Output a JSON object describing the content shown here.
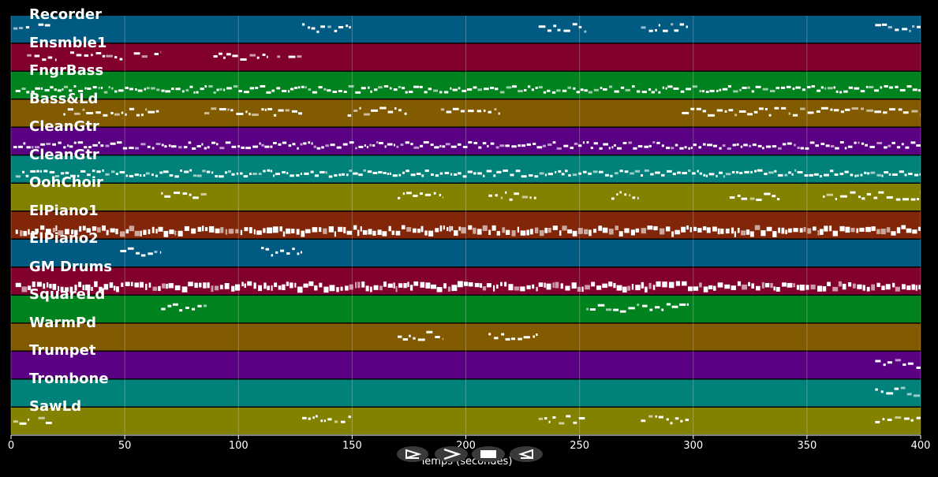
{
  "timeline": {
    "axis_label": "Temps (secondes)",
    "x_range": [
      0,
      400
    ],
    "ticks": [
      "0",
      "50",
      "100",
      "150",
      "200",
      "250",
      "300",
      "350",
      "400"
    ]
  },
  "tracks": [
    {
      "name": "Recorder",
      "color": "#005a82"
    },
    {
      "name": "Ensmble1",
      "color": "#82002e"
    },
    {
      "name": "FngrBass",
      "color": "#00821e"
    },
    {
      "name": "Bass&Ld",
      "color": "#825a00"
    },
    {
      "name": "CleanGtr",
      "color": "#5a0082"
    },
    {
      "name": "CleanGtr",
      "color": "#00827a"
    },
    {
      "name": "OohChoir",
      "color": "#828200"
    },
    {
      "name": "ElPiano1",
      "color": "#82260a"
    },
    {
      "name": "ElPiano2",
      "color": "#005a82"
    },
    {
      "name": "GM Drums",
      "color": "#82002e"
    },
    {
      "name": "SquareLd",
      "color": "#00821e"
    },
    {
      "name": "WarmPd",
      "color": "#825a00"
    },
    {
      "name": "Trumpet",
      "color": "#5a0082"
    },
    {
      "name": "Trombone",
      "color": "#00827a"
    },
    {
      "name": "SawLd",
      "color": "#828200"
    }
  ],
  "controls": [
    {
      "name": "play-button",
      "icon": "play-outline-icon"
    },
    {
      "name": "forward-button",
      "icon": "chevron-right-icon"
    },
    {
      "name": "stop-button",
      "icon": "stop-icon"
    },
    {
      "name": "back-button",
      "icon": "back-triangle-icon"
    }
  ]
}
